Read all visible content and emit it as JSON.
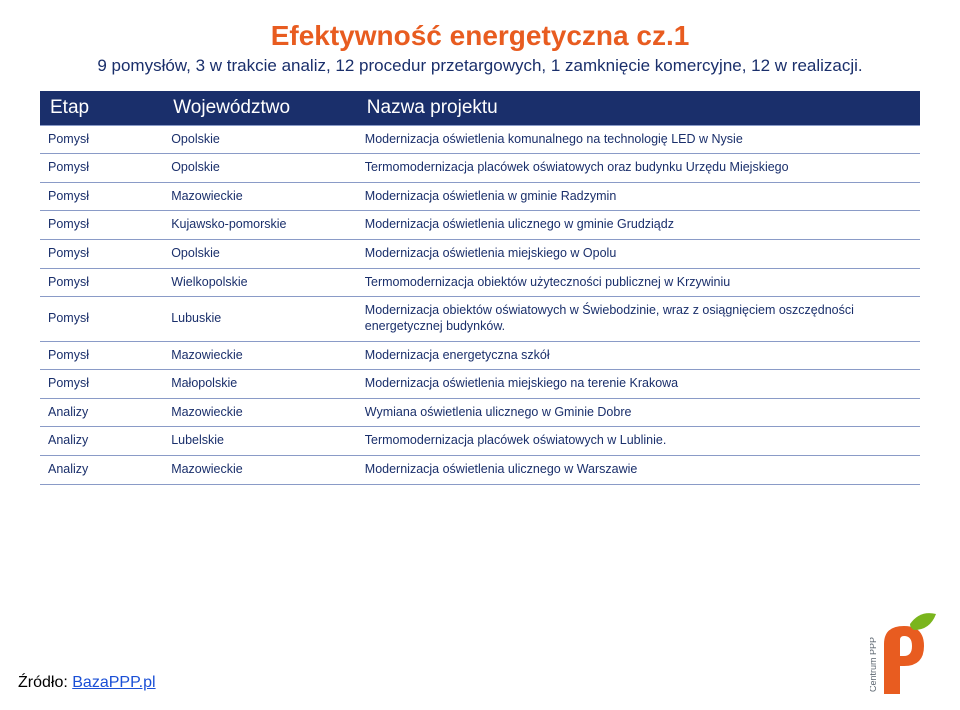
{
  "colors": {
    "title_color": "#e85c20",
    "subtitle_color": "#1a2f6b",
    "header_bg": "#1a2f6b",
    "header_text": "#ffffff",
    "row_border": "#8a9bc7",
    "cell_text": "#1a2f6b",
    "source_link": "#1a4fd6",
    "logo_p": "#e85c20",
    "logo_green": "#7ab51d",
    "logo_text": "#5c6670"
  },
  "typography": {
    "title_fontsize": 28,
    "subtitle_fontsize": 17,
    "header_fontsize": 19,
    "cell_fontsize": 12.5,
    "source_fontsize": 16
  },
  "title": "Efektywność energetyczna cz.1",
  "subtitle": "9 pomysłów, 3 w trakcie analiz, 12 procedur przetargowych, 1 zamknięcie komercyjne, 12 w realizacji.",
  "table": {
    "columns": [
      "Etap",
      "Województwo",
      "Nazwa projektu"
    ],
    "col_widths_pct": [
      14,
      22,
      64
    ],
    "rows": [
      [
        "Pomysł",
        "Opolskie",
        "Modernizacja oświetlenia komunalnego na technologię LED w Nysie"
      ],
      [
        "Pomysł",
        "Opolskie",
        "Termomodernizacja placówek oświatowych oraz budynku Urzędu Miejskiego"
      ],
      [
        "Pomysł",
        "Mazowieckie",
        "Modernizacja oświetlenia w gminie Radzymin"
      ],
      [
        "Pomysł",
        "Kujawsko-pomorskie",
        "Modernizacja oświetlenia ulicznego w gminie Grudziądz"
      ],
      [
        "Pomysł",
        "Opolskie",
        "Modernizacja oświetlenia miejskiego w Opolu"
      ],
      [
        "Pomysł",
        "Wielkopolskie",
        "Termomodernizacja obiektów użyteczności publicznej w Krzywiniu"
      ],
      [
        "Pomysł",
        "Lubuskie",
        "Modernizacja obiektów oświatowych w Świebodzinie, wraz z osiągnięciem oszczędności energetycznej budynków."
      ],
      [
        "Pomysł",
        "Mazowieckie",
        "Modernizacja energetyczna szkół"
      ],
      [
        "Pomysł",
        "Małopolskie",
        "Modernizacja oświetlenia miejskiego na terenie Krakowa"
      ],
      [
        "Analizy",
        "Mazowieckie",
        "Wymiana oświetlenia ulicznego w Gminie Dobre"
      ],
      [
        "Analizy",
        "Lubelskie",
        "Termomodernizacja placówek oświatowych w Lublinie."
      ],
      [
        "Analizy",
        "Mazowieckie",
        "Modernizacja oświetlenia ulicznego w Warszawie"
      ]
    ]
  },
  "source": {
    "prefix": "Źródło: ",
    "link_text": "BazaPPP.pl"
  },
  "logo": {
    "side_text": "Centrum PPP"
  }
}
